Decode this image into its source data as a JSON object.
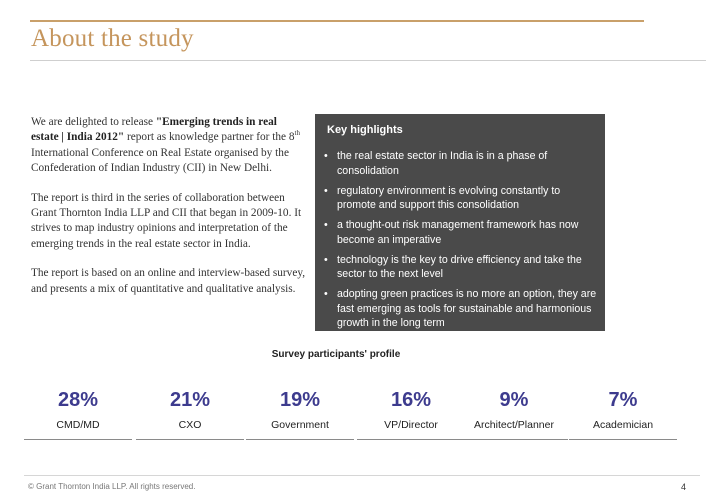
{
  "slide": {
    "title": "About the study",
    "page_number": "4",
    "copyright": "© Grant Thornton India LLP. All rights reserved."
  },
  "intro": {
    "p1": {
      "pre": "We are delighted to release ",
      "bold": "\"Emerging trends in real estate | India 2012\"",
      "mid": " report as knowledge partner for the 8",
      "sup": "th",
      "post": " International Conference on Real Estate organised by the Confederation of Indian Industry (CII) in New Delhi."
    },
    "p2": "The report is third in the series of collaboration between Grant Thornton India LLP and CII that began in 2009-10. It strives to map industry opinions and interpretation of the emerging trends in the real estate sector in India.",
    "p3": "The report is based on an online and interview-based survey, and presents a mix of quantitative and qualitative analysis."
  },
  "highlights": {
    "title": "Key highlights",
    "bullet_char": "•",
    "items": [
      "the real estate sector in India is in a phase of consolidation",
      "regulatory environment is evolving constantly to promote and support this consolidation",
      "a thought-out risk management framework has now become an imperative",
      "technology is the key to drive efficiency and take the sector to the next level",
      "adopting green practices is no more an option, they are fast emerging as tools for sustainable and harmonious growth in the long term"
    ]
  },
  "survey": {
    "title": "Survey participants' profile",
    "participants": [
      {
        "pct": "28%",
        "label": "CMD/MD"
      },
      {
        "pct": "21%",
        "label": "CXO"
      },
      {
        "pct": "19%",
        "label": "Government"
      },
      {
        "pct": "16%",
        "label": "VP/Director"
      },
      {
        "pct": "9%",
        "label": "Architect/Planner"
      },
      {
        "pct": "7%",
        "label": "Academician"
      }
    ]
  },
  "colors": {
    "title": "#c5955c",
    "highlight_box": "#4a4a4a",
    "percent": "#3d3b8e"
  }
}
